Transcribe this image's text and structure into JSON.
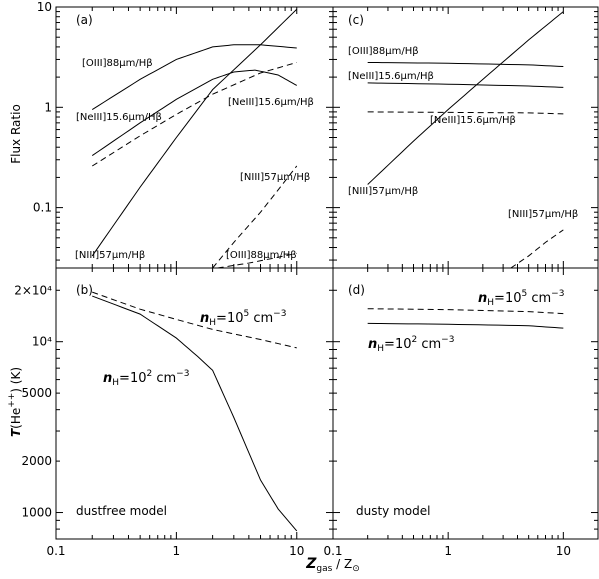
{
  "chart_data": [
    {
      "panel": "a",
      "type": "line",
      "panel_label": "(a)",
      "xscale": "log",
      "yscale": "log",
      "xlim": [
        0.1,
        20
      ],
      "ylim": [
        0.025,
        10
      ],
      "ylabel": "Flux Ratio",
      "xticks": [
        0.1,
        1,
        10
      ],
      "xtick_labels": [
        "0.1",
        "1",
        "10"
      ],
      "yticks": [
        0.1,
        1,
        10
      ],
      "ytick_labels": [
        "0.1",
        "1",
        "10"
      ],
      "series": [
        {
          "label": "[OIII]88μm/Hβ",
          "style": "solid",
          "x": [
            0.2,
            0.5,
            1,
            2,
            3,
            5,
            10
          ],
          "y": [
            0.95,
            1.9,
            3.0,
            4.0,
            4.2,
            4.2,
            3.9
          ]
        },
        {
          "label": "[NeIII]15.6μm/Hβ",
          "style": "solid",
          "x": [
            0.2,
            0.5,
            1,
            2,
            3,
            4.5,
            7,
            10
          ],
          "y": [
            0.33,
            0.7,
            1.2,
            1.9,
            2.25,
            2.35,
            2.1,
            1.65
          ]
        },
        {
          "label": "[NeIII]15.6μm/Hβ",
          "style": "dashed",
          "x": [
            0.2,
            0.5,
            1,
            2,
            5,
            10
          ],
          "y": [
            0.26,
            0.52,
            0.85,
            1.35,
            2.2,
            2.8
          ]
        },
        {
          "label": "[NIII]57μm/Hβ",
          "style": "solid",
          "x": [
            0.2,
            0.5,
            1,
            2,
            5,
            10
          ],
          "y": [
            0.033,
            0.16,
            0.5,
            1.5,
            4.2,
            9.5
          ]
        },
        {
          "label": "[NIII]57μm/Hβ",
          "style": "dashed",
          "x": [
            2,
            3,
            5,
            7,
            10
          ],
          "y": [
            0.025,
            0.045,
            0.09,
            0.15,
            0.26
          ]
        },
        {
          "label": "[OIII]88μm/Hβ",
          "style": "dashed",
          "x": [
            2.2,
            4,
            7,
            10
          ],
          "y": [
            0.025,
            0.028,
            0.032,
            0.035
          ]
        }
      ],
      "annotations": [
        "[OIII]88μm/Hβ",
        "[NeIII]15.6μm/Hβ",
        "[NeIII]15.6μm/Hβ",
        "[NIII]57μm/Hβ",
        "[NIII]57μm/Hβ",
        "[OIII]88μm/Hβ"
      ]
    },
    {
      "panel": "c",
      "type": "line",
      "panel_label": "(c)",
      "xscale": "log",
      "yscale": "log",
      "xlim": [
        0.1,
        20
      ],
      "ylim": [
        0.025,
        10
      ],
      "xticks": [
        0.1,
        1,
        10
      ],
      "xtick_labels": [
        "0.1",
        "1",
        "10"
      ],
      "series": [
        {
          "label": "[OIII]88μm/Hβ",
          "style": "solid",
          "x": [
            0.2,
            1,
            5,
            10
          ],
          "y": [
            2.8,
            2.75,
            2.65,
            2.55
          ]
        },
        {
          "label": "[NeIII]15.6μm/Hβ",
          "style": "solid",
          "x": [
            0.2,
            1,
            5,
            10
          ],
          "y": [
            1.75,
            1.7,
            1.63,
            1.58
          ]
        },
        {
          "label": "[NeIII]15.6μm/Hβ",
          "style": "dashed",
          "x": [
            0.2,
            1,
            5,
            10
          ],
          "y": [
            0.9,
            0.89,
            0.88,
            0.86
          ]
        },
        {
          "label": "[NIII]57μm/Hβ",
          "style": "solid",
          "x": [
            0.2,
            0.5,
            1,
            2,
            5,
            10
          ],
          "y": [
            0.17,
            0.46,
            0.95,
            1.9,
            4.7,
            9.0
          ]
        },
        {
          "label": "[NIII]57μm/Hβ",
          "style": "dashed",
          "x": [
            3.5,
            5,
            7,
            10
          ],
          "y": [
            0.025,
            0.033,
            0.045,
            0.06
          ]
        }
      ],
      "annotations": [
        "[OIII]88μm/Hβ",
        "[NeIII]15.6μm/Hβ",
        "[NeIII]15.6μm/Hβ",
        "[NIII]57μm/Hβ",
        "[NIII]57μm/Hβ"
      ]
    },
    {
      "panel": "b",
      "type": "line",
      "panel_label": "(b)",
      "xscale": "log",
      "yscale": "log",
      "xlim": [
        0.1,
        20
      ],
      "ylim": [
        700,
        27000
      ],
      "ylabel": "T(He⁺⁺) (K)",
      "xticks": [
        0.1,
        1,
        10
      ],
      "xtick_labels": [
        "0.1",
        "1",
        "10"
      ],
      "yticks": [
        1000,
        2000,
        5000,
        10000,
        20000
      ],
      "ytick_labels": [
        "1000",
        "2000",
        "5000",
        "10⁴",
        "2×10⁴"
      ],
      "series": [
        {
          "label": "nH=10⁵ cm⁻³",
          "style": "dashed",
          "x": [
            0.2,
            0.5,
            1,
            2,
            5,
            10
          ],
          "y": [
            19500,
            15500,
            13500,
            11800,
            10300,
            9200
          ]
        },
        {
          "label": "nH=10² cm⁻³",
          "style": "solid",
          "x": [
            0.2,
            0.5,
            1,
            1.5,
            2,
            3,
            5,
            7,
            10
          ],
          "y": [
            18500,
            14500,
            10500,
            8200,
            6800,
            3600,
            1550,
            1050,
            780
          ]
        }
      ],
      "annotations": [
        "nH=10⁵ cm⁻³",
        "nH=10² cm⁻³"
      ],
      "model_label": "dustfree model"
    },
    {
      "panel": "d",
      "type": "line",
      "panel_label": "(d)",
      "xscale": "log",
      "yscale": "log",
      "xlim": [
        0.1,
        20
      ],
      "ylim": [
        700,
        27000
      ],
      "xticks": [
        0.1,
        1,
        10
      ],
      "xtick_labels": [
        "0.1",
        "1",
        "10"
      ],
      "series": [
        {
          "label": "nH=10⁵ cm⁻³",
          "style": "dashed",
          "x": [
            0.2,
            1,
            5,
            10
          ],
          "y": [
            15600,
            15400,
            15000,
            14600
          ]
        },
        {
          "label": "nH=10² cm⁻³",
          "style": "solid",
          "x": [
            0.2,
            1,
            5,
            10
          ],
          "y": [
            12800,
            12650,
            12400,
            12000
          ]
        }
      ],
      "annotations": [
        "nH=10⁵ cm⁻³",
        "nH=10² cm⁻³"
      ],
      "model_label": "dusty model"
    }
  ],
  "xlabel": "Zgas / Z⊙",
  "labels": {
    "a_oiii": "[OIII]88μm/Hβ",
    "a_neiii_solid": "[NeIII]15.6μm/Hβ",
    "a_neiii_dashed": "[NeIII]15.6μm/Hβ",
    "a_niii_solid": "[NIII]57μm/Hβ",
    "a_niii_dashed": "[NIII]57μm/Hβ",
    "a_oiii_dashed": "[OIII]88μm/Hβ",
    "c_oiii": "[OIII]88μm/Hβ",
    "c_neiii_solid": "[NeIII]15.6μm/Hβ",
    "c_neiii_dashed": "[NeIII]15.6μm/Hβ",
    "c_niii_solid": "[NIII]57μm/Hβ",
    "c_niii_dashed": "[NIII]57μm/Hβ",
    "n_prefix": "n",
    "n_sub": "H",
    "n5_value": "=10",
    "n5_exp": "5",
    "n2_exp": "2",
    "n_unit": " cm",
    "n_unit_exp": "−3",
    "t_symbol": "T",
    "t_species": "(He",
    "t_charge": "++",
    "t_unit": ") (K)",
    "flux_ratio": "Flux Ratio",
    "z_symbol": "Z",
    "z_sub_gas": "gas",
    "z_sep": " / Z",
    "z_sub_sun": "⊙"
  }
}
